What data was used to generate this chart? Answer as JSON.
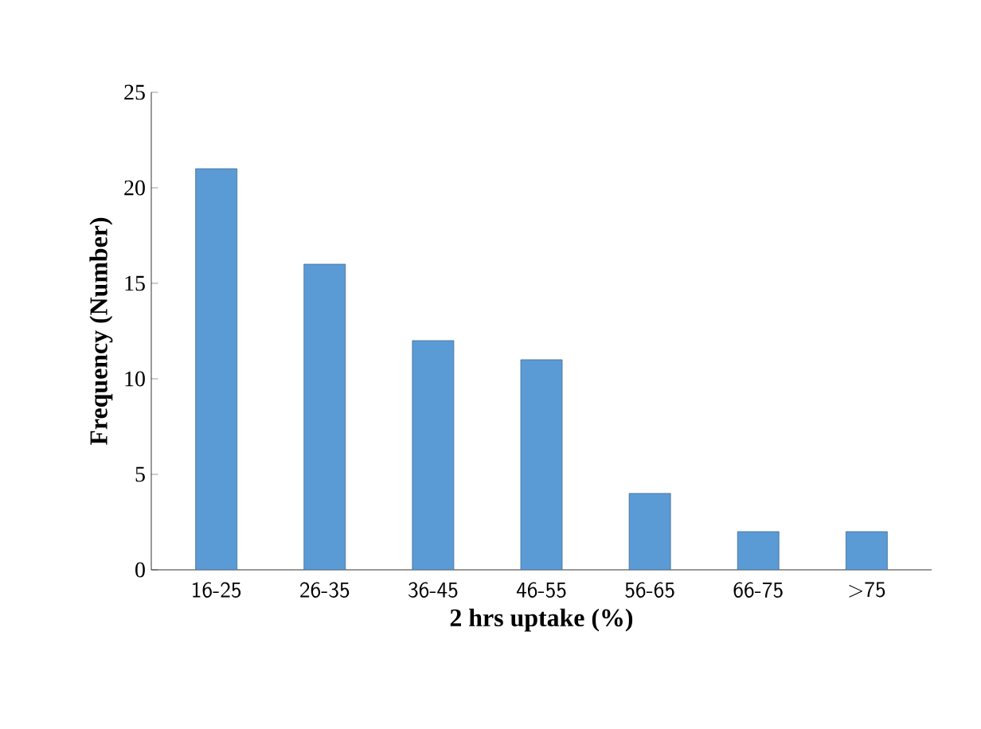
{
  "chart_data": {
    "type": "bar",
    "xlabel": "2 hrs uptake (%)",
    "ylabel": "Frequency (Number)",
    "categories": [
      "16-25",
      "26-35",
      "36-45",
      "46-55",
      "56-65",
      "66-75",
      ">75"
    ],
    "values": [
      21,
      16,
      12,
      11,
      4,
      2,
      2
    ],
    "color": "#5b9bd5",
    "ylim": [
      0,
      25
    ],
    "yticks": [
      0,
      5,
      10,
      15,
      20,
      25
    ],
    "grid": false
  }
}
